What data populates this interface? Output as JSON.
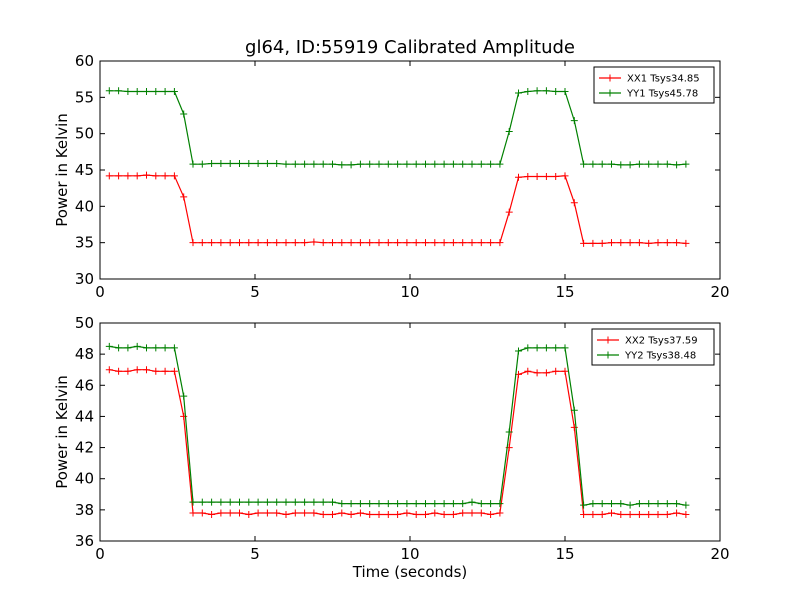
{
  "figure": {
    "title": "gl64, ID:55919 Calibrated Amplitude"
  },
  "chart_data": [
    {
      "type": "line",
      "title": "gl64, ID:55919 Calibrated Amplitude",
      "xlabel": "",
      "ylabel": "Power in Kelvin",
      "xlim": [
        0,
        20
      ],
      "ylim": [
        30,
        60
      ],
      "xticks": [
        "0",
        "5",
        "10",
        "15",
        "20"
      ],
      "yticks": [
        "30",
        "35",
        "40",
        "45",
        "50",
        "55",
        "60"
      ],
      "legend_position": "top-right",
      "grid": false,
      "x": [
        0.3,
        0.6,
        0.9,
        1.2,
        1.5,
        1.8,
        2.1,
        2.4,
        2.7,
        3.0,
        3.3,
        3.6,
        3.9,
        4.2,
        4.5,
        4.8,
        5.1,
        5.4,
        5.7,
        6.0,
        6.3,
        6.6,
        6.9,
        7.2,
        7.5,
        7.8,
        8.1,
        8.4,
        8.7,
        9.0,
        9.3,
        9.6,
        9.9,
        10.2,
        10.5,
        10.8,
        11.1,
        11.4,
        11.7,
        12.0,
        12.3,
        12.6,
        12.9,
        13.2,
        13.5,
        13.8,
        14.1,
        14.4,
        14.7,
        15.0,
        15.3,
        15.6,
        15.9,
        16.2,
        16.5,
        16.8,
        17.1,
        17.4,
        17.7,
        18.0,
        18.3,
        18.6,
        18.9
      ],
      "series": [
        {
          "name": "XX1 Tsys34.85",
          "color": "#ff0000",
          "values": [
            44.2,
            44.2,
            44.2,
            44.2,
            44.3,
            44.2,
            44.2,
            44.2,
            41.3,
            35.0,
            35.0,
            35.0,
            35.0,
            35.0,
            35.0,
            35.0,
            35.0,
            35.0,
            35.0,
            35.0,
            35.0,
            35.0,
            35.1,
            35.0,
            35.0,
            35.0,
            35.0,
            35.0,
            35.0,
            35.0,
            35.0,
            35.0,
            35.0,
            35.0,
            35.0,
            35.0,
            35.0,
            35.0,
            35.0,
            35.0,
            35.0,
            35.0,
            35.0,
            39.2,
            44.0,
            44.1,
            44.1,
            44.1,
            44.1,
            44.2,
            40.5,
            34.9,
            34.9,
            34.9,
            35.0,
            35.0,
            35.0,
            35.0,
            34.9,
            35.0,
            35.0,
            35.0,
            34.9
          ]
        },
        {
          "name": "YY1 Tsys45.78",
          "color": "#008000",
          "values": [
            55.9,
            55.9,
            55.8,
            55.8,
            55.8,
            55.8,
            55.8,
            55.8,
            52.7,
            45.8,
            45.8,
            45.9,
            45.9,
            45.9,
            45.9,
            45.9,
            45.9,
            45.9,
            45.9,
            45.8,
            45.8,
            45.8,
            45.8,
            45.8,
            45.8,
            45.7,
            45.7,
            45.8,
            45.8,
            45.8,
            45.8,
            45.8,
            45.8,
            45.8,
            45.8,
            45.8,
            45.8,
            45.8,
            45.8,
            45.8,
            45.8,
            45.8,
            45.8,
            50.3,
            55.6,
            55.8,
            55.9,
            55.9,
            55.8,
            55.8,
            51.8,
            45.8,
            45.8,
            45.8,
            45.8,
            45.7,
            45.7,
            45.8,
            45.8,
            45.8,
            45.8,
            45.7,
            45.8
          ]
        }
      ]
    },
    {
      "type": "line",
      "title": "",
      "xlabel": "Time (seconds)",
      "ylabel": "Power in Kelvin",
      "xlim": [
        0,
        20
      ],
      "ylim": [
        36,
        50
      ],
      "xticks": [
        "0",
        "5",
        "10",
        "15",
        "20"
      ],
      "yticks": [
        "36",
        "38",
        "40",
        "42",
        "44",
        "46",
        "48",
        "50"
      ],
      "legend_position": "top-right",
      "grid": false,
      "x": [
        0.3,
        0.6,
        0.9,
        1.2,
        1.5,
        1.8,
        2.1,
        2.4,
        2.7,
        3.0,
        3.3,
        3.6,
        3.9,
        4.2,
        4.5,
        4.8,
        5.1,
        5.4,
        5.7,
        6.0,
        6.3,
        6.6,
        6.9,
        7.2,
        7.5,
        7.8,
        8.1,
        8.4,
        8.7,
        9.0,
        9.3,
        9.6,
        9.9,
        10.2,
        10.5,
        10.8,
        11.1,
        11.4,
        11.7,
        12.0,
        12.3,
        12.6,
        12.9,
        13.2,
        13.5,
        13.8,
        14.1,
        14.4,
        14.7,
        15.0,
        15.3,
        15.6,
        15.9,
        16.2,
        16.5,
        16.8,
        17.1,
        17.4,
        17.7,
        18.0,
        18.3,
        18.6,
        18.9
      ],
      "series": [
        {
          "name": "XX2 Tsys37.59",
          "color": "#ff0000",
          "values": [
            47.0,
            46.9,
            46.9,
            47.0,
            47.0,
            46.9,
            46.9,
            46.9,
            44.0,
            37.8,
            37.8,
            37.7,
            37.8,
            37.8,
            37.8,
            37.7,
            37.8,
            37.8,
            37.8,
            37.7,
            37.8,
            37.8,
            37.8,
            37.7,
            37.7,
            37.8,
            37.7,
            37.8,
            37.7,
            37.7,
            37.7,
            37.7,
            37.8,
            37.7,
            37.7,
            37.8,
            37.7,
            37.7,
            37.8,
            37.8,
            37.8,
            37.7,
            37.8,
            42.0,
            46.7,
            46.9,
            46.8,
            46.8,
            46.9,
            46.9,
            43.3,
            37.7,
            37.7,
            37.7,
            37.8,
            37.7,
            37.7,
            37.7,
            37.7,
            37.7,
            37.7,
            37.8,
            37.7
          ]
        },
        {
          "name": "YY2 Tsys38.48",
          "color": "#008000",
          "values": [
            48.5,
            48.4,
            48.4,
            48.5,
            48.4,
            48.4,
            48.4,
            48.4,
            45.3,
            38.5,
            38.5,
            38.5,
            38.5,
            38.5,
            38.5,
            38.5,
            38.5,
            38.5,
            38.5,
            38.5,
            38.5,
            38.5,
            38.5,
            38.5,
            38.5,
            38.4,
            38.4,
            38.4,
            38.4,
            38.4,
            38.4,
            38.4,
            38.4,
            38.4,
            38.4,
            38.4,
            38.4,
            38.4,
            38.4,
            38.5,
            38.4,
            38.4,
            38.4,
            43.0,
            48.2,
            48.4,
            48.4,
            48.4,
            48.4,
            48.4,
            44.4,
            38.3,
            38.4,
            38.4,
            38.4,
            38.4,
            38.3,
            38.4,
            38.4,
            38.4,
            38.4,
            38.4,
            38.3
          ]
        }
      ]
    }
  ]
}
